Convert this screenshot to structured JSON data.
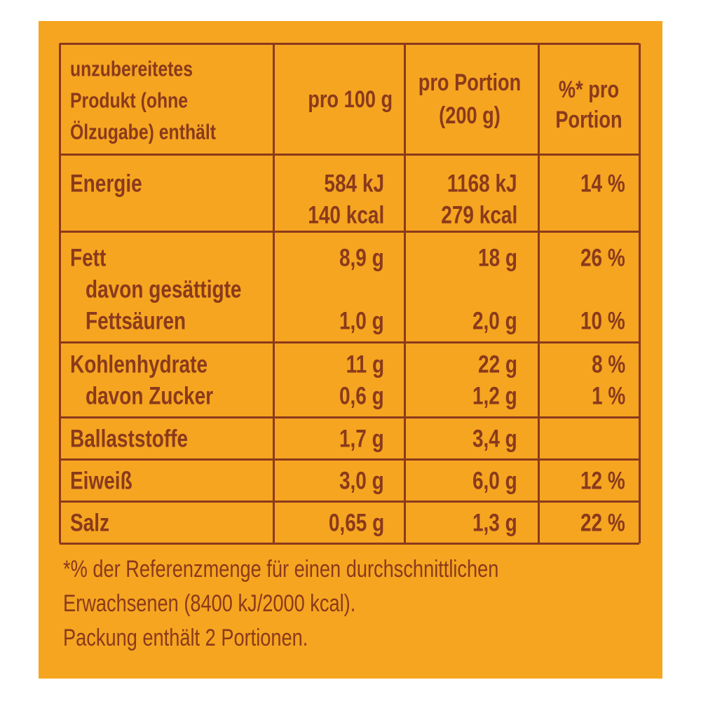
{
  "header": [
    [
      "unzubereitetes",
      "Produkt (ohne",
      "Ölzugabe) enthält"
    ],
    [
      "pro 100 g"
    ],
    [
      "pro Portion",
      "(200 g)"
    ],
    [
      "%* pro",
      "Portion"
    ]
  ],
  "rows": [
    [
      {
        "label": "Energie",
        "per100": "584 kJ",
        "portion": "1168 kJ",
        "percent": "14 %"
      },
      {
        "per100": "140 kcal",
        "portion": "279 kcal"
      }
    ],
    [
      {
        "label": "Fett",
        "per100": "8,9 g",
        "portion": "18 g",
        "percent": "26 %"
      },
      {
        "label": "davon gesättigte"
      },
      {
        "label": "Fettsäuren",
        "per100": "1,0 g",
        "portion": "2,0 g",
        "percent": "10 %"
      }
    ],
    [
      {
        "label": "Kohlenhydrate",
        "per100": "11 g",
        "portion": "22 g",
        "percent": "8 %"
      },
      {
        "label": "davon Zucker",
        "per100": "0,6 g",
        "portion": "1,2 g",
        "percent": "1 %"
      }
    ],
    [
      {
        "label": "Ballaststoffe",
        "per100": "1,7 g",
        "portion": "3,4 g"
      }
    ],
    [
      {
        "label": "Eiweiß",
        "per100": "3,0 g",
        "portion": "6,0 g",
        "percent": "12 %"
      }
    ],
    [
      {
        "label": "Salz",
        "per100": "0,65 g",
        "portion": "1,3 g",
        "percent": "22 %"
      }
    ]
  ],
  "footnote": [
    "*% der Referenzmenge für einen durchschnittlichen",
    "Erwachsenen (8400 kJ/2000 kcal).",
    "Packung enthält 2 Portionen."
  ]
}
